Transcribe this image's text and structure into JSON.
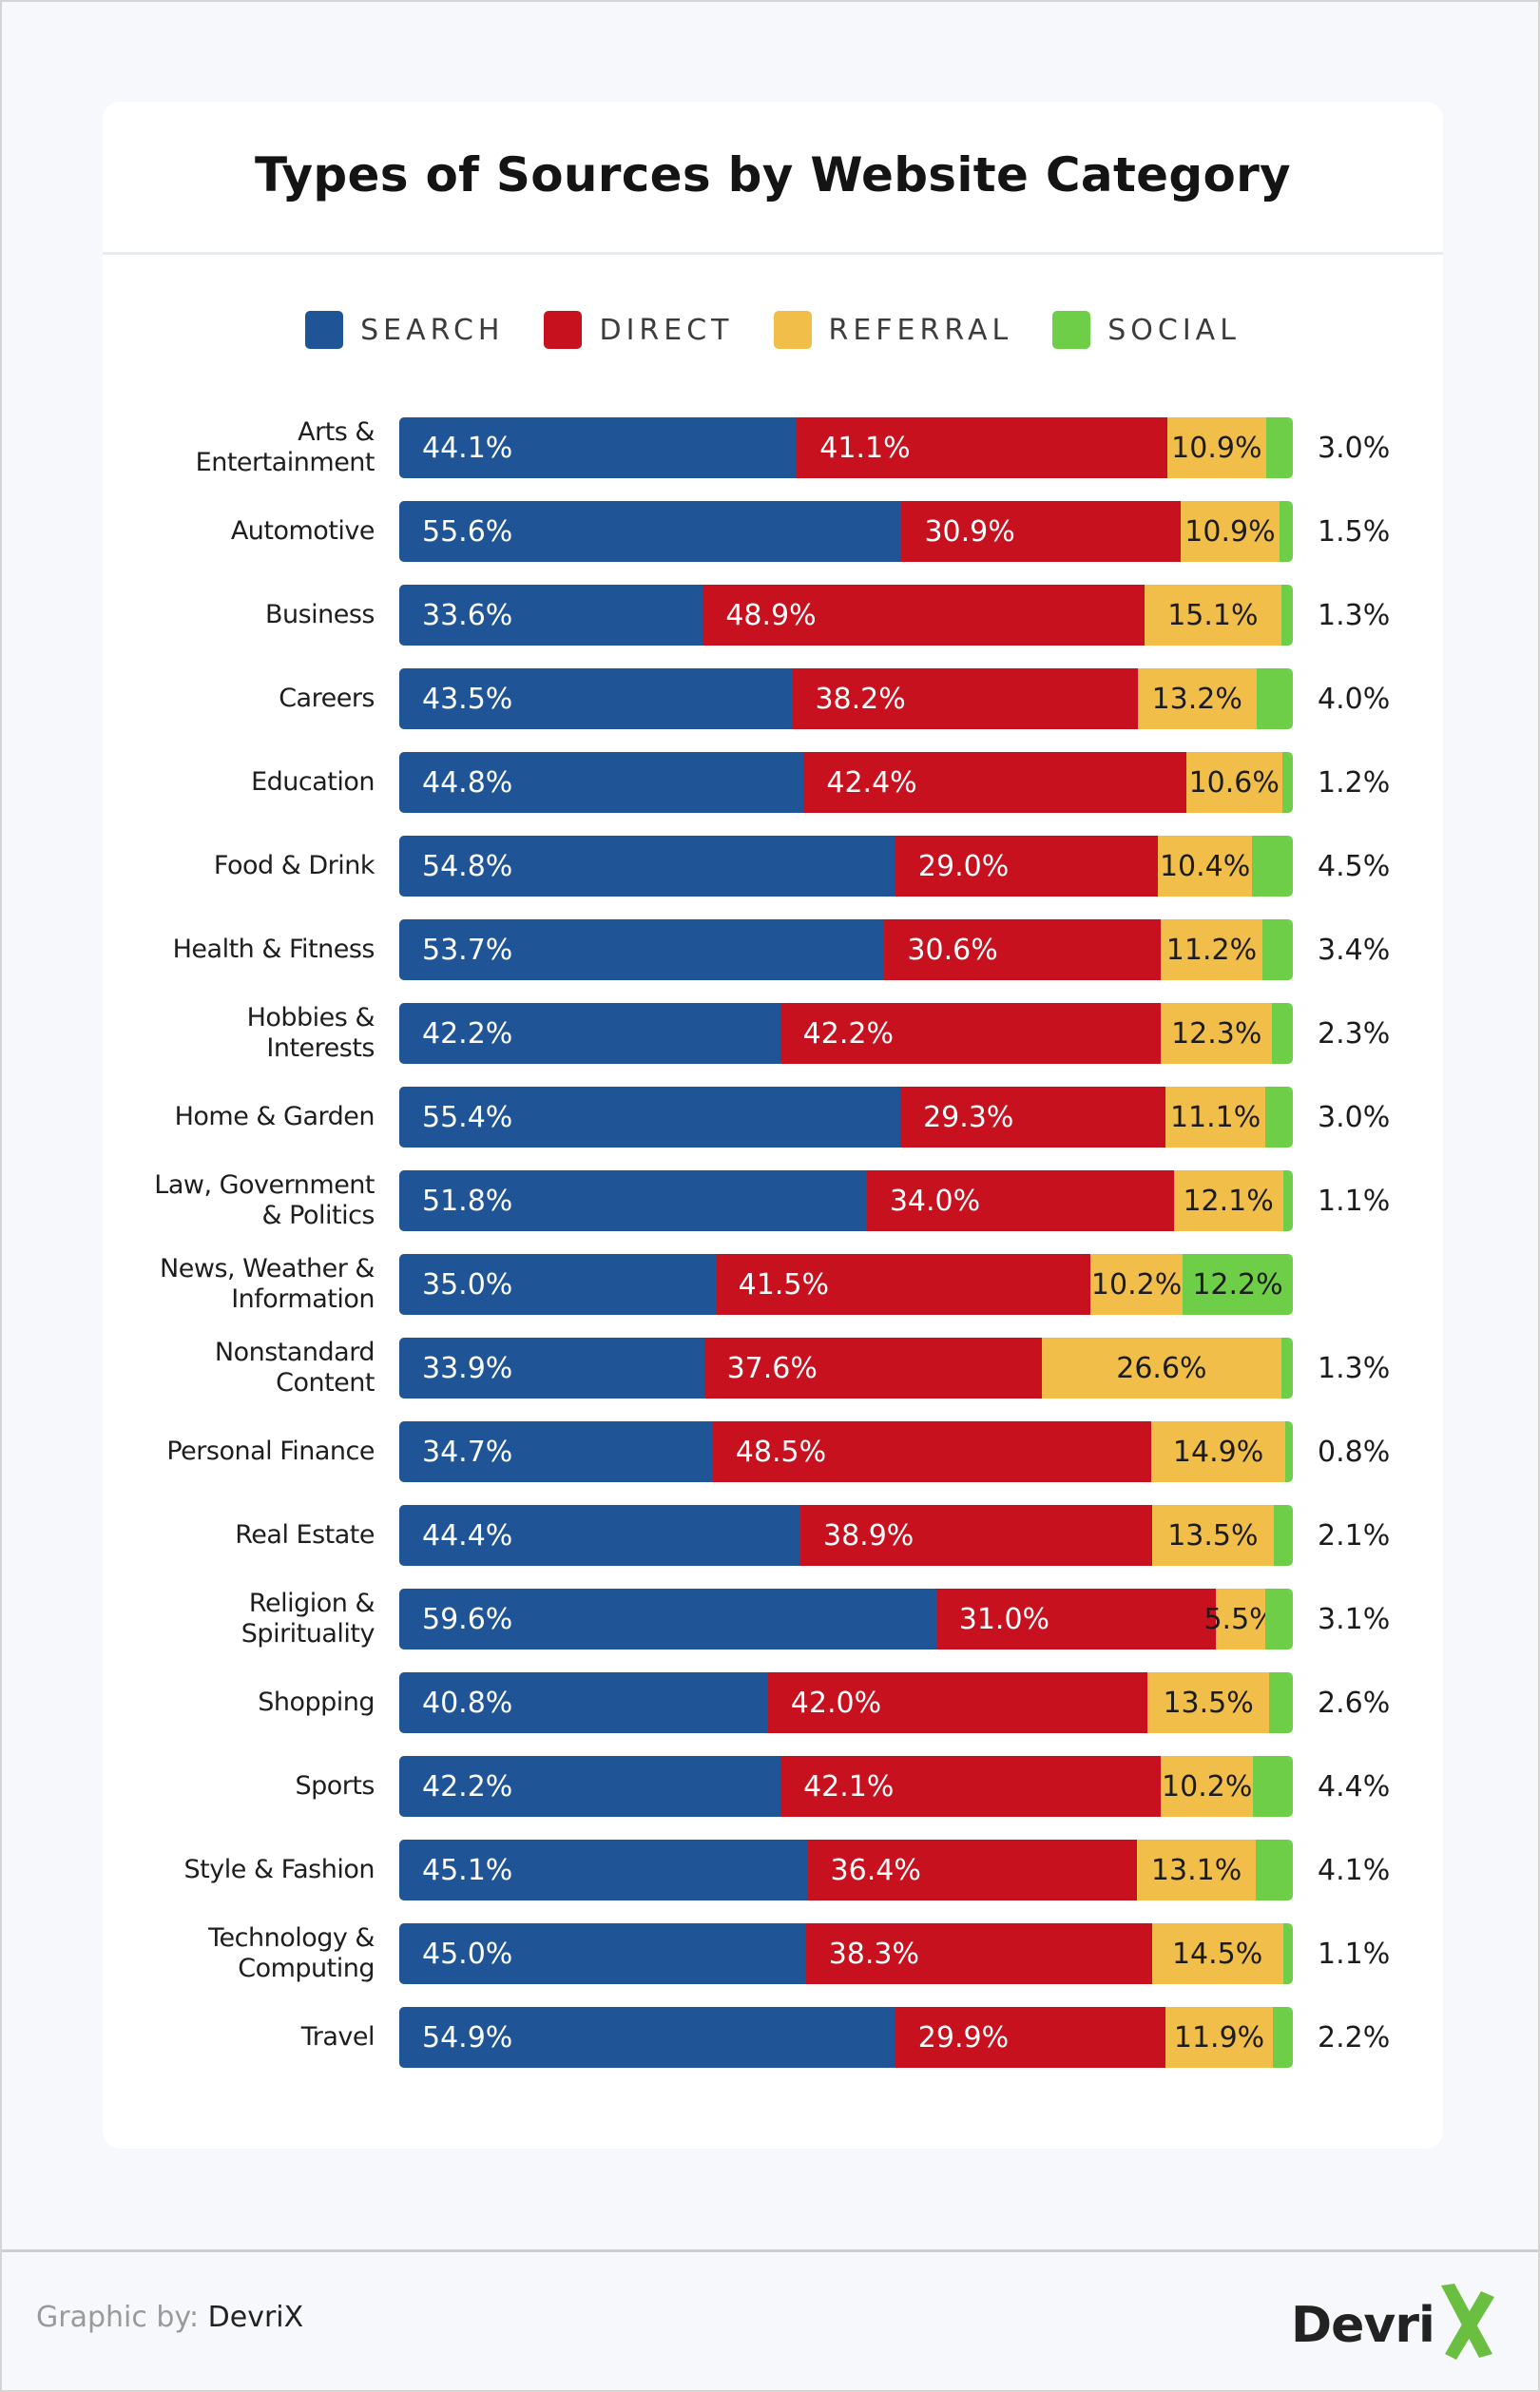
{
  "title": "Types of Sources by Website Category",
  "colors": {
    "search": "#1f5597",
    "direct": "#c8111e",
    "referral": "#f1be4a",
    "social": "#6ece48",
    "logo_x": "#6abf40"
  },
  "legend": [
    {
      "key": "search",
      "label": "SEARCH"
    },
    {
      "key": "direct",
      "label": "DIRECT"
    },
    {
      "key": "referral",
      "label": "REFERRAL"
    },
    {
      "key": "social",
      "label": "SOCIAL"
    }
  ],
  "chart_data": {
    "type": "bar",
    "orientation": "horizontal",
    "stacked": true,
    "title": "Types of Sources by Website Category",
    "xlabel": "",
    "ylabel": "",
    "xlim": [
      0,
      100
    ],
    "grid": false,
    "legend_position": "top-center",
    "categories": [
      "Arts & Entertainment",
      "Automotive",
      "Business",
      "Careers",
      "Education",
      "Food & Drink",
      "Health & Fitness",
      "Hobbies & Interests",
      "Home & Garden",
      "Law, Government & Politics",
      "News, Weather & Information",
      "Nonstandard Content",
      "Personal Finance",
      "Real Estate",
      "Religion & Spirituality",
      "Shopping",
      "Sports",
      "Style & Fashion",
      "Technology & Computing",
      "Travel"
    ],
    "category_display": [
      [
        "Arts &",
        "Entertainment"
      ],
      [
        "Automotive"
      ],
      [
        "Business"
      ],
      [
        "Careers"
      ],
      [
        "Education"
      ],
      [
        "Food & Drink"
      ],
      [
        "Health & Fitness"
      ],
      [
        "Hobbies &",
        "Interests"
      ],
      [
        "Home & Garden"
      ],
      [
        "Law, Government",
        "& Politics"
      ],
      [
        "News, Weather &",
        "Information"
      ],
      [
        "Nonstandard",
        "Content"
      ],
      [
        "Personal Finance"
      ],
      [
        "Real Estate"
      ],
      [
        "Religion &",
        "Spirituality"
      ],
      [
        "Shopping"
      ],
      [
        "Sports"
      ],
      [
        "Style & Fashion"
      ],
      [
        "Technology &",
        "Computing"
      ],
      [
        "Travel"
      ]
    ],
    "series": [
      {
        "name": "Search",
        "key": "search",
        "values": [
          44.1,
          55.6,
          33.6,
          43.5,
          44.8,
          54.8,
          53.7,
          42.2,
          55.4,
          51.8,
          35.0,
          33.9,
          34.7,
          44.4,
          59.6,
          40.8,
          42.2,
          45.1,
          45.0,
          54.9
        ]
      },
      {
        "name": "Direct",
        "key": "direct",
        "values": [
          41.1,
          30.9,
          48.9,
          38.2,
          42.4,
          29.0,
          30.6,
          42.2,
          29.3,
          34.0,
          41.5,
          37.6,
          48.5,
          38.9,
          31.0,
          42.0,
          42.1,
          36.4,
          38.3,
          29.9
        ]
      },
      {
        "name": "Referral",
        "key": "referral",
        "values": [
          10.9,
          10.9,
          15.1,
          13.2,
          10.6,
          10.4,
          11.2,
          12.3,
          11.1,
          12.1,
          10.2,
          26.6,
          14.9,
          13.5,
          5.5,
          13.5,
          10.2,
          13.1,
          14.5,
          11.9
        ]
      },
      {
        "name": "Social",
        "key": "social",
        "values": [
          3.0,
          1.5,
          1.3,
          4.0,
          1.2,
          4.5,
          3.4,
          2.3,
          3.0,
          1.1,
          12.2,
          1.3,
          0.8,
          2.1,
          3.1,
          2.6,
          4.4,
          4.1,
          1.1,
          2.2
        ]
      }
    ],
    "social_label_inside_bar": [
      false,
      false,
      false,
      false,
      false,
      false,
      false,
      false,
      false,
      false,
      true,
      false,
      false,
      false,
      false,
      false,
      false,
      false,
      false,
      false
    ]
  },
  "footer": {
    "credit_prefix": "Graphic by:",
    "credit_name": "DevriX",
    "logo_text": "Devri",
    "logo_mark": "X"
  }
}
